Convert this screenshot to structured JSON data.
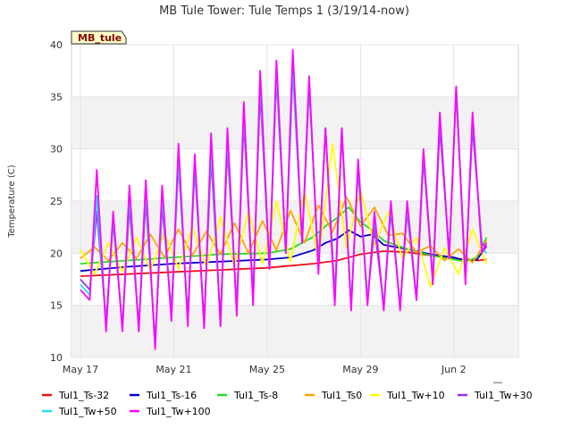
{
  "chart_data": {
    "type": "line",
    "title": "MB Tule Tower: Tule Temps 1 (3/19/14-now)",
    "badge": "MB_tule",
    "xlabel": "",
    "ylabel": "Temperature (C)",
    "xlim": [
      0,
      18
    ],
    "ylim": [
      10,
      40
    ],
    "xticks": [
      {
        "v": 0,
        "label": "May 17"
      },
      {
        "v": 4,
        "label": "May 21"
      },
      {
        "v": 8,
        "label": "May 25"
      },
      {
        "v": 12,
        "label": "May 29"
      },
      {
        "v": 16,
        "label": "Jun 2"
      }
    ],
    "yticks": [
      10,
      15,
      20,
      25,
      30,
      35,
      40
    ],
    "x_trailing_tick": "—",
    "series": [
      {
        "name": "Tul1_Ts-32",
        "color": "#ee1111",
        "x": [
          0,
          2,
          4,
          6,
          8,
          9,
          10,
          11,
          12,
          13,
          14,
          15,
          16,
          17,
          17.4
        ],
        "values": [
          17.8,
          18.0,
          18.2,
          18.4,
          18.6,
          18.8,
          19.0,
          19.3,
          19.9,
          20.2,
          20.1,
          19.8,
          19.5,
          19.3,
          19.4
        ]
      },
      {
        "name": "Tul1_Ts-16",
        "color": "#0000cc",
        "x": [
          0,
          2,
          4,
          6,
          8,
          9,
          10,
          10.5,
          11,
          11.5,
          12,
          12.5,
          13,
          14,
          15,
          16,
          16.5,
          17,
          17.4
        ],
        "values": [
          18.3,
          18.7,
          19.0,
          19.2,
          19.4,
          19.6,
          20.3,
          21.0,
          21.4,
          22.2,
          21.6,
          21.8,
          20.8,
          20.4,
          19.9,
          19.6,
          19.3,
          19.4,
          20.7
        ]
      },
      {
        "name": "Tul1_Ts-8",
        "color": "#22dd22",
        "x": [
          0,
          2,
          4,
          6,
          8,
          9,
          10,
          10.5,
          11,
          11.5,
          12,
          12.5,
          13,
          14,
          15,
          16,
          16.5,
          17,
          17.4
        ],
        "values": [
          19.0,
          19.3,
          19.6,
          19.9,
          20.0,
          20.4,
          21.6,
          22.6,
          23.4,
          24.4,
          23.0,
          22.2,
          21.2,
          20.4,
          19.8,
          19.4,
          19.2,
          19.6,
          21.5
        ]
      },
      {
        "name": "Tul1_Ts0",
        "color": "#ffa500",
        "x": [
          0,
          0.6,
          1.2,
          1.8,
          2.4,
          3,
          3.6,
          4.2,
          4.8,
          5.4,
          6,
          6.6,
          7.2,
          7.8,
          8.4,
          9,
          9.6,
          10.2,
          10.8,
          11.4,
          12,
          12.6,
          13.2,
          13.8,
          14.4,
          15,
          15.6,
          16.2,
          16.8,
          17.4
        ],
        "values": [
          19.5,
          20.6,
          19.3,
          21.0,
          19.5,
          21.8,
          19.6,
          22.3,
          19.8,
          22.1,
          19.9,
          22.9,
          20.0,
          23.1,
          20.3,
          24.1,
          21.0,
          24.6,
          22.0,
          25.4,
          22.6,
          24.4,
          21.7,
          21.9,
          20.1,
          20.7,
          19.3,
          20.4,
          19.1,
          21.2
        ]
      },
      {
        "name": "Tul1_Tw+10",
        "color": "#ffff00",
        "x": [
          0,
          0.6,
          1.2,
          1.8,
          2.4,
          3,
          3.6,
          4.2,
          4.8,
          5.4,
          6,
          6.6,
          7.2,
          7.8,
          8.4,
          9,
          9.6,
          10.2,
          10.8,
          11.4,
          12,
          12.6,
          13.2,
          13.8,
          14.4,
          15,
          15.6,
          16.2,
          16.8,
          17.4
        ],
        "values": [
          20.3,
          18.0,
          21.0,
          18.2,
          21.5,
          18.4,
          22.0,
          18.5,
          22.5,
          18.7,
          23.5,
          18.8,
          24.0,
          19.0,
          25.0,
          19.2,
          26.0,
          19.4,
          30.5,
          20.5,
          26.0,
          20.8,
          24.0,
          19.5,
          21.5,
          16.8,
          20.5,
          18.0,
          22.3,
          19.0
        ]
      },
      {
        "name": "Tul1_Tw+30",
        "color": "#9933ee",
        "x": [
          0,
          0.4,
          0.7,
          1.1,
          1.4,
          1.8,
          2.1,
          2.5,
          2.8,
          3.2,
          3.5,
          3.9,
          4.2,
          4.6,
          4.9,
          5.3,
          5.6,
          6.0,
          6.3,
          6.7,
          7.0,
          7.4,
          7.7,
          8.1,
          8.4,
          8.8,
          9.1,
          9.5,
          9.8,
          10.2,
          10.5,
          10.9,
          11.2,
          11.6,
          11.9,
          12.3,
          12.6,
          13.0,
          13.3,
          13.7,
          14.0,
          14.4,
          14.7,
          15.1,
          15.4,
          15.8,
          16.1,
          16.5,
          16.8,
          17.2,
          17.4
        ],
        "values": [
          17.5,
          16.5,
          24.0,
          13.5,
          23.0,
          13.0,
          24.5,
          13.0,
          25.0,
          11.5,
          24.5,
          14.5,
          28.5,
          14.0,
          28.0,
          13.5,
          29.0,
          13.5,
          30.0,
          15.0,
          32.5,
          16.0,
          35.5,
          18.5,
          37.0,
          20.0,
          37.5,
          21.0,
          36.0,
          19.0,
          32.0,
          16.0,
          31.5,
          15.0,
          28.0,
          15.5,
          22.5,
          15.0,
          24.0,
          15.0,
          24.0,
          15.5,
          29.0,
          17.5,
          32.0,
          20.0,
          35.5,
          18.0,
          32.0,
          21.0,
          20.5
        ]
      },
      {
        "name": "Tul1_Tw+50",
        "color": "#22ddee",
        "x": [
          0,
          0.4,
          0.7,
          1.1,
          1.4,
          1.8,
          2.1,
          2.5,
          2.8,
          3.2,
          3.5,
          3.9,
          4.2,
          4.6,
          4.9,
          5.3,
          5.6,
          6.0,
          6.3,
          6.7,
          7.0,
          7.4,
          7.7,
          8.1,
          8.4,
          8.8,
          9.1,
          9.5,
          9.8,
          10.2,
          10.5,
          10.9,
          11.2,
          11.6,
          11.9,
          12.3,
          12.6,
          13.0,
          13.3,
          13.7,
          14.0,
          14.4,
          14.7,
          15.1,
          15.4,
          15.8,
          16.1,
          16.5,
          16.8,
          17.2,
          17.4
        ],
        "values": [
          17.0,
          16.0,
          25.5,
          13.0,
          23.5,
          12.8,
          25.5,
          12.8,
          26.0,
          11.0,
          25.5,
          14.0,
          29.0,
          13.5,
          28.5,
          13.0,
          30.0,
          13.0,
          31.0,
          14.5,
          33.5,
          15.5,
          36.5,
          18.5,
          37.5,
          20.0,
          38.0,
          21.0,
          36.5,
          18.5,
          32.0,
          15.5,
          32.0,
          15.0,
          28.5,
          15.5,
          23.5,
          15.0,
          24.5,
          15.0,
          24.5,
          15.5,
          29.5,
          17.5,
          33.0,
          19.5,
          36.0,
          17.5,
          33.0,
          20.5,
          20.0
        ]
      },
      {
        "name": "Tul1_Tw+100",
        "color": "#ff00ff",
        "x": [
          0,
          0.4,
          0.7,
          1.1,
          1.4,
          1.8,
          2.1,
          2.5,
          2.8,
          3.2,
          3.5,
          3.9,
          4.2,
          4.6,
          4.9,
          5.3,
          5.6,
          6.0,
          6.3,
          6.7,
          7.0,
          7.4,
          7.7,
          8.1,
          8.4,
          8.8,
          9.1,
          9.5,
          9.8,
          10.2,
          10.5,
          10.9,
          11.2,
          11.6,
          11.9,
          12.3,
          12.6,
          13.0,
          13.3,
          13.7,
          14.0,
          14.4,
          14.7,
          15.1,
          15.4,
          15.8,
          16.1,
          16.5,
          16.8,
          17.2,
          17.4
        ],
        "values": [
          16.5,
          15.5,
          28.0,
          12.5,
          24.0,
          12.5,
          26.5,
          12.5,
          27.0,
          10.8,
          26.5,
          13.5,
          30.5,
          13.0,
          29.5,
          12.8,
          31.5,
          13.0,
          32.0,
          14.0,
          34.5,
          15.0,
          37.5,
          18.5,
          38.5,
          20.0,
          39.5,
          21.0,
          37.0,
          18.0,
          32.0,
          15.0,
          32.0,
          14.5,
          29.0,
          15.0,
          24.0,
          14.5,
          25.0,
          14.5,
          25.0,
          15.5,
          30.0,
          17.0,
          33.5,
          19.5,
          36.0,
          17.0,
          33.5,
          20.0,
          21.0
        ]
      }
    ]
  },
  "legend": {
    "row1": [
      "Tul1_Ts-32",
      "Tul1_Ts-16",
      "Tul1_Ts-8",
      "Tul1_Ts0",
      "Tul1_Tw+10",
      "Tul1_Tw+30"
    ],
    "row2": [
      "Tul1_Tw+50",
      "Tul1_Tw+100"
    ]
  }
}
